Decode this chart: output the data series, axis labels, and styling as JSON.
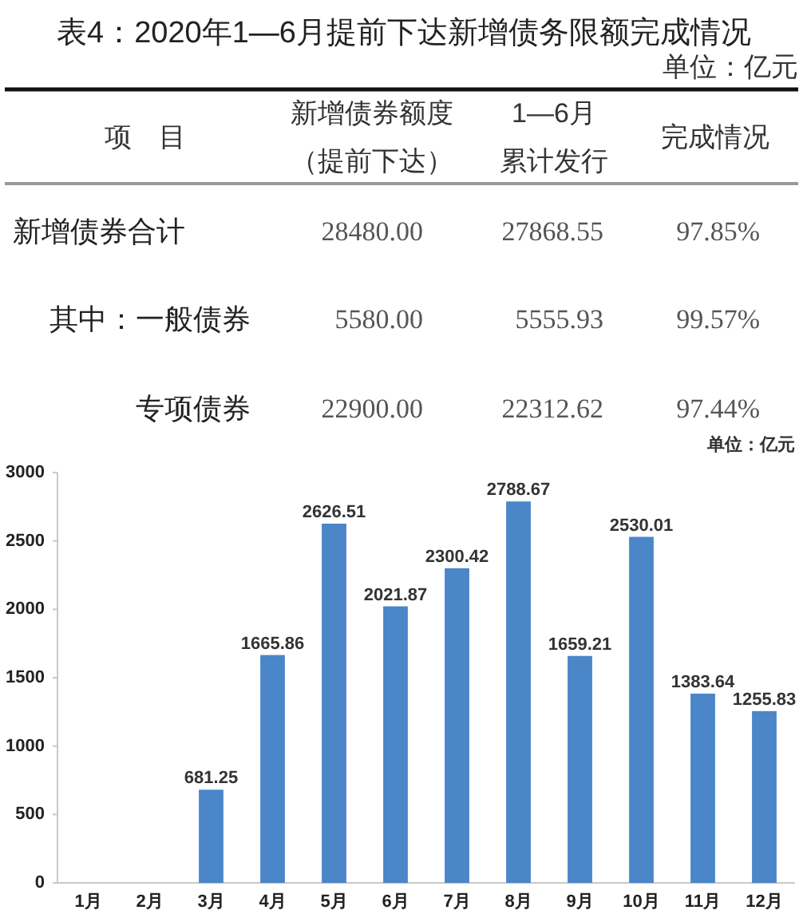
{
  "chart_data": [
    {
      "type": "other",
      "title": "表4：2020年1—6月提前下达新增债务限额完成情况",
      "annotations": [
        "单位：亿元"
      ],
      "xlabel": "项　目",
      "categories": [
        "新增债券合计",
        "其中：一般债券",
        "专项债券"
      ],
      "series": [
        {
          "name": "新增债券额度（提前下达）",
          "values": [
            28480,
            5580,
            22900
          ],
          "value_labels": [
            "28480.00",
            "5580.00",
            "22900.00"
          ]
        },
        {
          "name": "1—6月累计发行",
          "values": [
            27868.55,
            5555.93,
            22312.62
          ],
          "value_labels": [
            "27868.55",
            "5555.93",
            "22312.62"
          ]
        },
        {
          "name": "完成情况",
          "values": [
            97.85,
            99.57,
            97.44
          ],
          "value_labels": [
            "97.85%",
            "99.57%",
            "97.44%"
          ]
        }
      ]
    },
    {
      "type": "bar",
      "annotations": [
        "单位：亿元"
      ],
      "categories": [
        "1月",
        "2月",
        "3月",
        "4月",
        "5月",
        "6月",
        "7月",
        "8月",
        "9月",
        "10月",
        "11月",
        "12月"
      ],
      "values": [
        null,
        null,
        681.25,
        1665.86,
        2626.51,
        2021.87,
        2300.42,
        2788.67,
        1659.21,
        2530.01,
        1383.64,
        1255.83
      ],
      "color": "#4a86c8",
      "ylim": [
        0,
        3000
      ],
      "yticks": [
        0,
        500,
        1000,
        1500,
        2000,
        2500,
        3000
      ],
      "data_labels": true
    }
  ]
}
